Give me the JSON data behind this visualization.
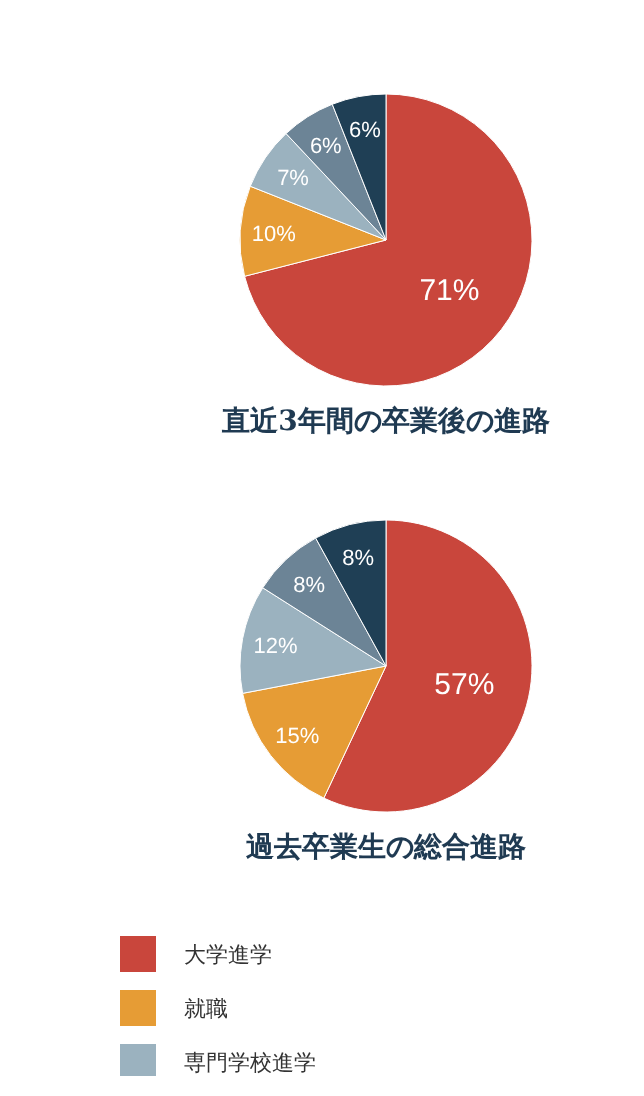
{
  "chart_data": [
    {
      "type": "pie",
      "title": "直近3年間の卒業後の進路",
      "categories": [
        null,
        null,
        null,
        null,
        null
      ],
      "values": [
        71,
        10,
        7,
        6,
        6
      ],
      "colors": [
        "#c9463c",
        "#e69c35",
        "#9bb2bf",
        "#6c8496",
        "#1f3f55"
      ],
      "value_labels": [
        "71%",
        "10%",
        "7%",
        "6%",
        "6%"
      ]
    },
    {
      "type": "pie",
      "title": "過去卒業生の総合進路",
      "categories": [
        "大学進学",
        "就職",
        "専門学校進学",
        null,
        null
      ],
      "values": [
        57,
        15,
        12,
        8,
        8
      ],
      "colors": [
        "#c9463c",
        "#e69c35",
        "#9bb2bf",
        "#6c8496",
        "#1f3f55"
      ],
      "value_labels": [
        "57%",
        "15%",
        "12%",
        "8%",
        "8%"
      ],
      "legend": "bottom"
    }
  ]
}
